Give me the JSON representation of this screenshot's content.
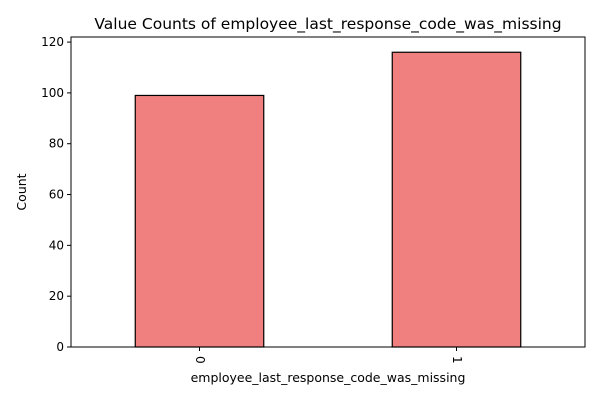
{
  "chart_data": {
    "type": "bar",
    "title": "Value Counts of employee_last_response_code_was_missing",
    "xlabel": "employee_last_response_code_was_missing",
    "ylabel": "Count",
    "categories": [
      "0",
      "1"
    ],
    "values": [
      99,
      116
    ],
    "ylim": [
      0,
      122
    ],
    "yticks": [
      0,
      20,
      40,
      60,
      80,
      100,
      120
    ],
    "bar_color": "#f08080",
    "bar_edge_color": "#000000",
    "grid": false,
    "legend": "none"
  }
}
